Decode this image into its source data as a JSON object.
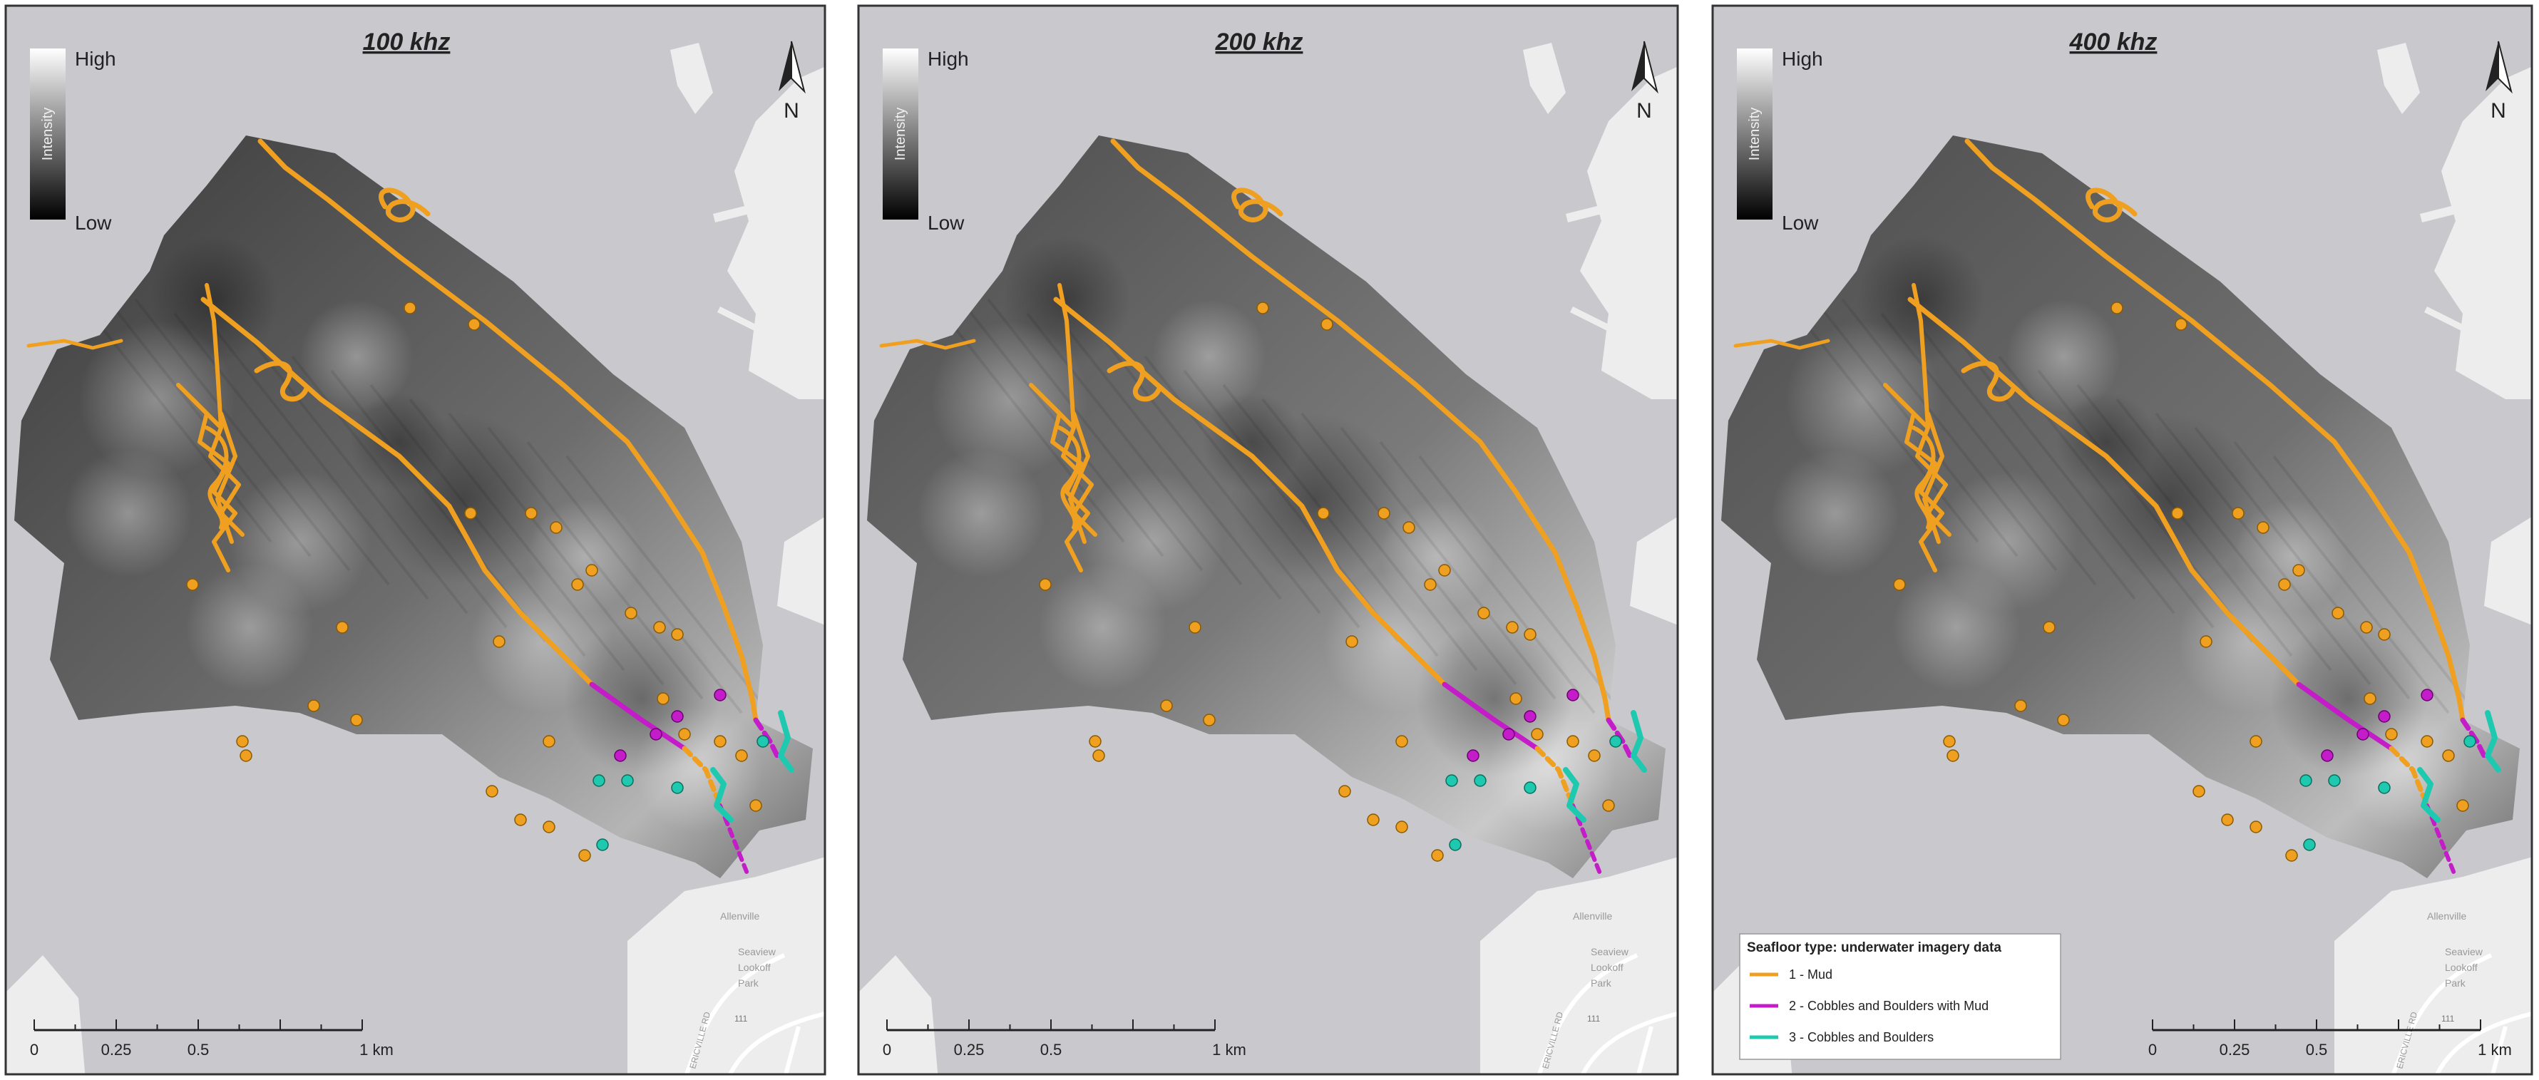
{
  "panels": [
    {
      "title": "100 khz"
    },
    {
      "title": "200 khz"
    },
    {
      "title": "400 khz"
    }
  ],
  "intensity_legend": {
    "high": "High",
    "low": "Low",
    "axis": "Intensity"
  },
  "north_arrow": {
    "label": "N"
  },
  "scale_bar": {
    "ticks": [
      "0",
      "0.25",
      "0.5",
      "1 km"
    ]
  },
  "basemap_labels": {
    "place": "Allenville",
    "park": [
      "Seaview",
      "Lookoff",
      "Park"
    ],
    "road": "ERICVILLE RD",
    "route": "111"
  },
  "seafloor_legend": {
    "title": "Seafloor type: underwater imagery data",
    "items": [
      {
        "label": "1 - Mud",
        "color": "#F0A020"
      },
      {
        "label": "2 - Cobbles and Boulders with Mud",
        "color": "#C41CC8"
      },
      {
        "label": "3 - Cobbles and Boulders",
        "color": "#1FC9B0"
      }
    ]
  },
  "colors": {
    "mud": "#F0A020",
    "mixed": "#C41CC8",
    "cobbles": "#1FC9B0",
    "water": "#C9C9CD",
    "land": "#EDEDED"
  }
}
